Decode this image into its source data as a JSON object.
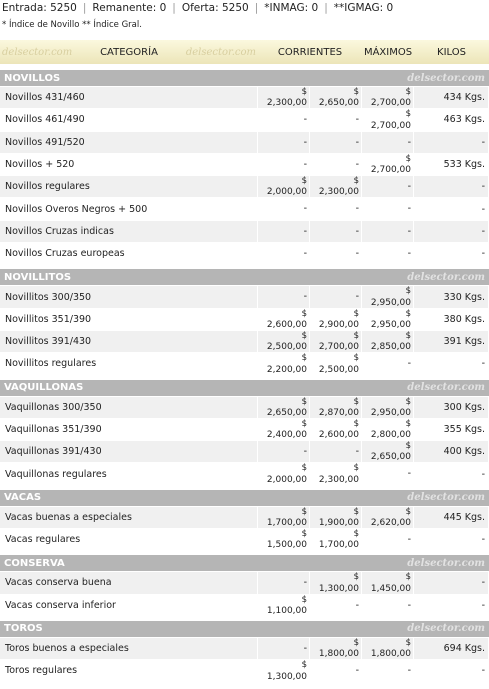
{
  "summary": {
    "items": [
      "Entrada: 5250",
      "Remanente: 0",
      "Oferta: 5250",
      "*INMAG: 0",
      "**IGMAG: 0"
    ],
    "note": "* Índice de Novillo ** Índice Gral."
  },
  "header": {
    "watermark": "delsector.com",
    "columns": [
      "CATEGORÍA",
      "CORRIENTES",
      "MÁXIMOS",
      "KILOS"
    ]
  },
  "sections": [
    {
      "title": "NOVILLOS",
      "watermark": "delsector.com",
      "rows": [
        [
          "Novillos 431/460",
          {
            "sign": "$",
            "value": "2,300,00"
          },
          {
            "sign": "$",
            "value": "2,650,00"
          },
          {
            "sign": "$",
            "value": "2,700,00"
          },
          "434 Kgs."
        ],
        [
          "Novillos 461/490",
          "-",
          "-",
          {
            "sign": "$",
            "value": "2,700,00"
          },
          "463 Kgs."
        ],
        [
          "Novillos 491/520",
          "-",
          "-",
          "-",
          "-"
        ],
        [
          "Novillos + 520",
          "-",
          "-",
          {
            "sign": "$",
            "value": "2,700,00"
          },
          "533 Kgs."
        ],
        [
          "Novillos regulares",
          {
            "sign": "$",
            "value": "2,000,00"
          },
          {
            "sign": "$",
            "value": "2,300,00"
          },
          "-",
          "-"
        ],
        [
          "Novillos Overos Negros + 500",
          "-",
          "-",
          "-",
          "-"
        ],
        [
          "Novillos Cruzas indicas",
          "-",
          "-",
          "-",
          "-"
        ],
        [
          "Novillos Cruzas europeas",
          "-",
          "-",
          "-",
          "-"
        ]
      ]
    },
    {
      "title": "NOVILLITOS",
      "watermark": "delsector.com",
      "rows": [
        [
          "Novillitos 300/350",
          "-",
          "-",
          {
            "sign": "$",
            "value": "2,950,00"
          },
          "330 Kgs."
        ],
        [
          "Novillitos 351/390",
          {
            "sign": "$",
            "value": "2,600,00"
          },
          {
            "sign": "$",
            "value": "2,900,00"
          },
          {
            "sign": "$",
            "value": "2,950,00"
          },
          "380 Kgs."
        ],
        [
          "Novillitos 391/430",
          {
            "sign": "$",
            "value": "2,500,00"
          },
          {
            "sign": "$",
            "value": "2,700,00"
          },
          {
            "sign": "$",
            "value": "2,850,00"
          },
          "391 Kgs."
        ],
        [
          "Novillitos regulares",
          {
            "sign": "$",
            "value": "2,200,00"
          },
          {
            "sign": "$",
            "value": "2,500,00"
          },
          "-",
          "-"
        ]
      ]
    },
    {
      "title": "VAQUILLONAS",
      "watermark": "delsector.com",
      "rows": [
        [
          "Vaquillonas 300/350",
          {
            "sign": "$",
            "value": "2,650,00"
          },
          {
            "sign": "$",
            "value": "2,870,00"
          },
          {
            "sign": "$",
            "value": "2,950,00"
          },
          "300 Kgs."
        ],
        [
          "Vaquillonas 351/390",
          {
            "sign": "$",
            "value": "2,400,00"
          },
          {
            "sign": "$",
            "value": "2,600,00"
          },
          {
            "sign": "$",
            "value": "2,800,00"
          },
          "355 Kgs."
        ],
        [
          "Vaquillonas 391/430",
          "-",
          "-",
          {
            "sign": "$",
            "value": "2,650,00"
          },
          "400 Kgs."
        ],
        [
          "Vaquillonas regulares",
          {
            "sign": "$",
            "value": "2,000,00"
          },
          {
            "sign": "$",
            "value": "2,300,00"
          },
          "-",
          "-"
        ]
      ]
    },
    {
      "title": "VACAS",
      "watermark": "delsector.com",
      "rows": [
        [
          "Vacas buenas a especiales",
          {
            "sign": "$",
            "value": "1,700,00"
          },
          {
            "sign": "$",
            "value": "1,900,00"
          },
          {
            "sign": "$",
            "value": "2,620,00"
          },
          "445 Kgs."
        ],
        [
          "Vacas regulares",
          {
            "sign": "$",
            "value": "1,500,00"
          },
          {
            "sign": "$",
            "value": "1,700,00"
          },
          "-",
          "-"
        ]
      ]
    },
    {
      "title": "CONSERVA",
      "watermark": "delsector.com",
      "rows": [
        [
          "Vacas conserva buena",
          "-",
          {
            "sign": "$",
            "value": "1,300,00"
          },
          {
            "sign": "$",
            "value": "1,450,00"
          },
          "-"
        ],
        [
          "Vacas conserva inferior",
          {
            "sign": "$",
            "value": "1,100,00"
          },
          "-",
          "-",
          "-"
        ]
      ]
    },
    {
      "title": "TOROS",
      "watermark": "delsector.com",
      "rows": [
        [
          "Toros buenos a especiales",
          "-",
          {
            "sign": "$",
            "value": "1,800,00"
          },
          {
            "sign": "$",
            "value": "1,800,00"
          },
          "694 Kgs."
        ],
        [
          "Toros regulares",
          {
            "sign": "$",
            "value": "1,300,00"
          },
          "-",
          "-",
          "-"
        ]
      ]
    }
  ]
}
